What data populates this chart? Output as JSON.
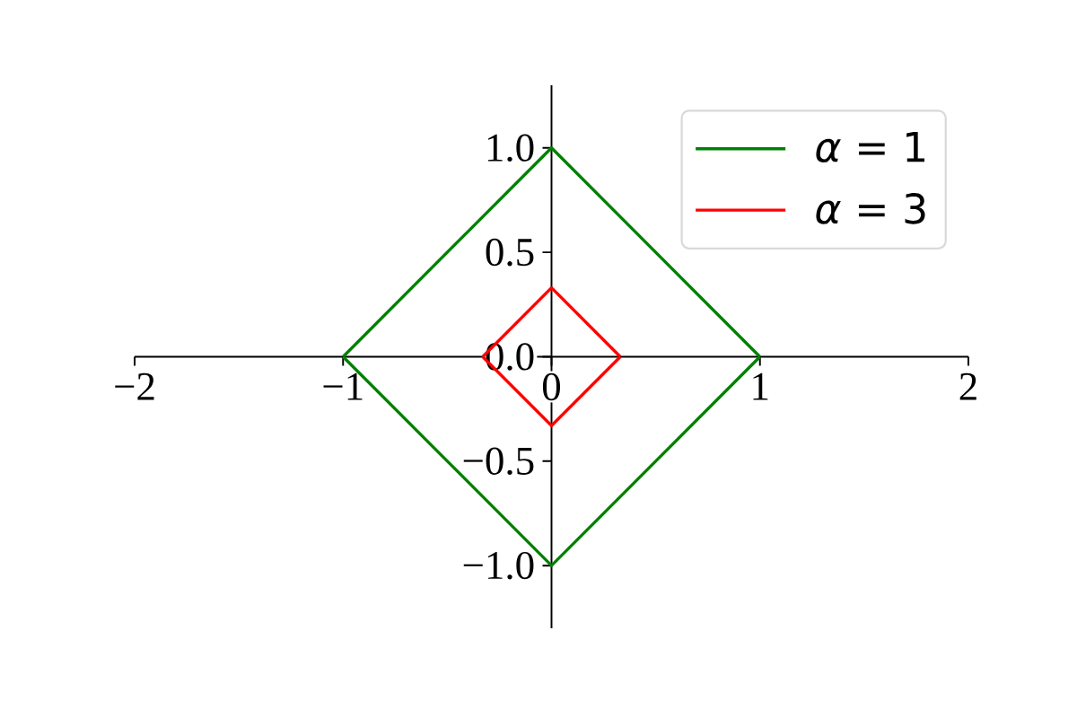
{
  "chart_data": {
    "type": "line",
    "series": [
      {
        "name": "*α* = 1",
        "color": "#008000",
        "x": [
          -1,
          0,
          1
        ],
        "values": [
          0,
          1,
          0
        ]
      },
      {
        "color": "#008000",
        "x": [
          -1,
          0,
          1
        ],
        "values": [
          0,
          -1,
          0
        ]
      },
      {
        "name": "*α* = 3",
        "color": "#ff0000",
        "x": [
          -0.33,
          0,
          0.33
        ],
        "values": [
          0,
          0.33,
          0
        ]
      },
      {
        "color": "#ff0000",
        "x": [
          -0.33,
          0,
          0.33
        ],
        "values": [
          0,
          -0.33,
          0
        ]
      }
    ],
    "xlim": [
      -2,
      2
    ],
    "ylim": [
      -1.3,
      1.3
    ],
    "xticks": [
      {
        "value": -2,
        "label": "−2"
      },
      {
        "value": -1,
        "label": "−1"
      },
      0,
      1,
      2
    ],
    "yticks": [
      {
        "value": -1,
        "label": "−1.0"
      },
      {
        "value": -0.5,
        "label": "−0.5"
      },
      {
        "value": 0,
        "label": "0.0"
      },
      {
        "value": 0.5,
        "label": "0.5"
      },
      {
        "value": 1,
        "label": "1.0"
      }
    ],
    "legend": "top right"
  }
}
